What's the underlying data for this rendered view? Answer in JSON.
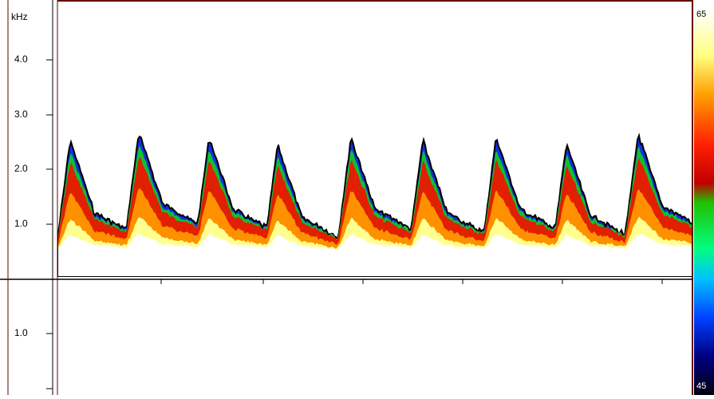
{
  "axis": {
    "unit": "kHz",
    "upper_ticks": [
      "4.0",
      "3.0",
      "2.0",
      "1.0"
    ],
    "lower_ticks": [
      "1.0"
    ]
  },
  "colorbar": {
    "max": "65",
    "min": "45"
  }
}
